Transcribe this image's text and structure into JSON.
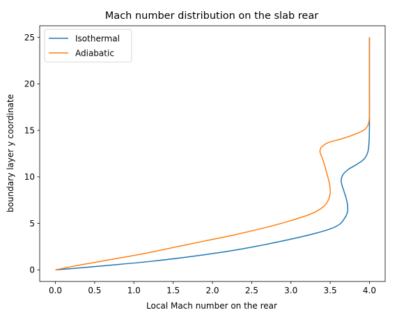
{
  "chart_data": {
    "type": "line",
    "title": "Mach number distribution on the slab rear",
    "xlabel": "Local Mach number on the rear",
    "ylabel": "boundary layer y coordinate",
    "xlim": [
      -0.2,
      4.2
    ],
    "ylim": [
      -1.25,
      26.25
    ],
    "xticks": [
      0.0,
      0.5,
      1.0,
      1.5,
      2.0,
      2.5,
      3.0,
      3.5,
      4.0
    ],
    "xtick_labels": [
      "0.0",
      "0.5",
      "1.0",
      "1.5",
      "2.0",
      "2.5",
      "3.0",
      "3.5",
      "4.0"
    ],
    "yticks": [
      0,
      5,
      10,
      15,
      20,
      25
    ],
    "ytick_labels": [
      "0",
      "5",
      "10",
      "15",
      "20",
      "25"
    ],
    "grid": false,
    "legend_position": "upper-left",
    "series": [
      {
        "name": "Isothermal",
        "color": "#1f77b4",
        "points": [
          [
            0.0,
            0.0
          ],
          [
            0.3,
            0.2
          ],
          [
            0.7,
            0.5
          ],
          [
            1.2,
            0.9
          ],
          [
            1.7,
            1.4
          ],
          [
            2.2,
            2.0
          ],
          [
            2.6,
            2.6
          ],
          [
            3.0,
            3.3
          ],
          [
            3.3,
            3.9
          ],
          [
            3.5,
            4.4
          ],
          [
            3.62,
            4.9
          ],
          [
            3.68,
            5.5
          ],
          [
            3.72,
            6.2
          ],
          [
            3.72,
            7.0
          ],
          [
            3.7,
            7.8
          ],
          [
            3.67,
            8.6
          ],
          [
            3.64,
            9.5
          ],
          [
            3.66,
            10.2
          ],
          [
            3.73,
            10.8
          ],
          [
            3.83,
            11.3
          ],
          [
            3.93,
            11.9
          ],
          [
            3.98,
            12.7
          ],
          [
            3.995,
            13.8
          ],
          [
            4.0,
            15.5
          ],
          [
            4.0,
            18.0
          ],
          [
            4.0,
            25.0
          ]
        ]
      },
      {
        "name": "Adiabatic",
        "color": "#ff7f0e",
        "points": [
          [
            0.0,
            0.0
          ],
          [
            0.3,
            0.5
          ],
          [
            0.7,
            1.1
          ],
          [
            1.1,
            1.7
          ],
          [
            1.5,
            2.4
          ],
          [
            1.9,
            3.1
          ],
          [
            2.3,
            3.8
          ],
          [
            2.7,
            4.6
          ],
          [
            3.0,
            5.3
          ],
          [
            3.25,
            6.0
          ],
          [
            3.4,
            6.7
          ],
          [
            3.47,
            7.4
          ],
          [
            3.5,
            8.3
          ],
          [
            3.49,
            9.3
          ],
          [
            3.46,
            10.3
          ],
          [
            3.43,
            11.2
          ],
          [
            3.4,
            12.0
          ],
          [
            3.37,
            12.7
          ],
          [
            3.39,
            13.2
          ],
          [
            3.48,
            13.7
          ],
          [
            3.65,
            14.1
          ],
          [
            3.82,
            14.6
          ],
          [
            3.94,
            15.1
          ],
          [
            3.99,
            15.8
          ],
          [
            4.0,
            17.0
          ],
          [
            4.0,
            20.0
          ],
          [
            4.0,
            25.0
          ]
        ]
      }
    ]
  }
}
